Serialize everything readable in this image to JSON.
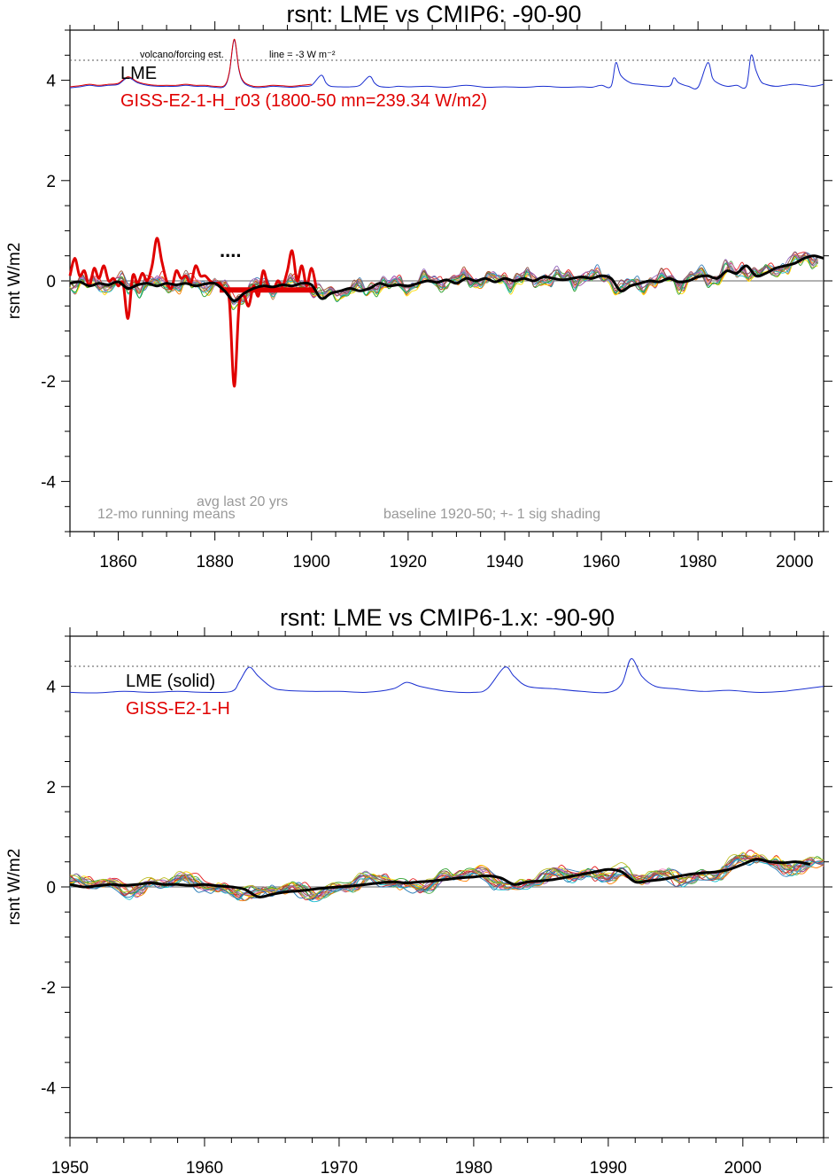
{
  "chart_data": [
    {
      "type": "line",
      "title": "rsnt: LME vs CMIP6: -90-90",
      "ylabel": "rsnt W/m2",
      "xlim": [
        1850,
        2006
      ],
      "ylim": [
        -5,
        5
      ],
      "x_ticks": [
        1860,
        1880,
        1900,
        1920,
        1940,
        1960,
        1980,
        2000
      ],
      "y_ticks": [
        -4,
        -2,
        0,
        2,
        4
      ],
      "grid": false,
      "reference_line": 4.4,
      "legend": {
        "lme": "LME",
        "giss": "GISS-E2-1-H_r03 (1800-50 mn=239.34 W/m2)",
        "placement": "top-left"
      },
      "annotations": {
        "volcano": "volcano/forcing est.",
        "line_scale": "line = -3 W m⁻²",
        "dots": "....",
        "avg_label": "avg last 20 yrs",
        "running": "12-mo running means",
        "baseline": "baseline 1920-50; +- 1 sig shading"
      },
      "volcano_series": {
        "color": "#1a2fd0",
        "x": [
          1850,
          1852,
          1854,
          1856,
          1858,
          1860,
          1862,
          1864,
          1866,
          1868,
          1870,
          1872,
          1874,
          1876,
          1878,
          1880,
          1882,
          1883,
          1884,
          1885,
          1886,
          1888,
          1890,
          1892,
          1894,
          1896,
          1898,
          1900,
          1902,
          1903,
          1904,
          1906,
          1908,
          1910,
          1912,
          1913,
          1914,
          1916,
          1918,
          1920,
          1924,
          1928,
          1932,
          1936,
          1940,
          1944,
          1948,
          1952,
          1956,
          1958,
          1960,
          1962,
          1963,
          1964,
          1966,
          1968,
          1970,
          1974,
          1975,
          1976,
          1978,
          1980,
          1982,
          1983,
          1984,
          1986,
          1988,
          1990,
          1991,
          1992,
          1993,
          1994,
          1996,
          1998,
          2000,
          2002,
          2004,
          2006
        ],
        "y": [
          3.85,
          3.87,
          3.9,
          3.88,
          3.9,
          3.92,
          4.05,
          3.95,
          3.9,
          3.88,
          3.88,
          3.88,
          3.9,
          3.88,
          3.88,
          3.86,
          3.88,
          4.15,
          4.8,
          4.2,
          3.95,
          3.86,
          3.86,
          3.88,
          3.87,
          3.86,
          3.88,
          3.9,
          4.1,
          3.95,
          3.88,
          3.87,
          3.87,
          3.9,
          4.08,
          3.95,
          3.88,
          3.86,
          3.88,
          3.87,
          3.88,
          3.86,
          3.9,
          3.86,
          3.87,
          3.86,
          3.88,
          3.86,
          3.87,
          3.86,
          3.9,
          3.88,
          4.35,
          4.1,
          3.95,
          3.92,
          3.9,
          3.88,
          4.05,
          3.95,
          3.88,
          3.86,
          4.35,
          4.05,
          3.95,
          3.88,
          3.9,
          3.88,
          4.5,
          4.2,
          3.98,
          3.92,
          3.88,
          3.9,
          3.92,
          3.9,
          3.88,
          3.92
        ]
      },
      "lme_series": {
        "color": "#000000",
        "x": [
          1850,
          1852,
          1854,
          1856,
          1858,
          1860,
          1862,
          1864,
          1866,
          1868,
          1870,
          1872,
          1874,
          1876,
          1878,
          1880,
          1882,
          1884,
          1886,
          1888,
          1890,
          1892,
          1894,
          1896,
          1898,
          1900,
          1902,
          1904,
          1906,
          1908,
          1910,
          1912,
          1914,
          1916,
          1918,
          1920,
          1922,
          1924,
          1926,
          1928,
          1930,
          1932,
          1934,
          1936,
          1938,
          1940,
          1942,
          1944,
          1946,
          1948,
          1950,
          1952,
          1954,
          1956,
          1958,
          1960,
          1962,
          1964,
          1966,
          1968,
          1970,
          1972,
          1974,
          1976,
          1978,
          1980,
          1982,
          1984,
          1986,
          1988,
          1990,
          1992,
          1994,
          1996,
          1998,
          2000,
          2002,
          2004,
          2006
        ],
        "y": [
          -0.05,
          -0.02,
          -0.1,
          -0.05,
          -0.08,
          -0.02,
          -0.15,
          -0.08,
          -0.05,
          -0.1,
          -0.05,
          -0.08,
          -0.05,
          -0.1,
          -0.06,
          -0.05,
          -0.2,
          -0.4,
          -0.25,
          -0.15,
          -0.1,
          -0.12,
          -0.08,
          -0.1,
          -0.05,
          -0.08,
          -0.35,
          -0.25,
          -0.2,
          -0.15,
          -0.2,
          -0.15,
          -0.05,
          -0.1,
          -0.08,
          -0.1,
          -0.05,
          0.0,
          -0.03,
          0.02,
          -0.05,
          0.05,
          0.0,
          0.05,
          -0.02,
          0.05,
          0.0,
          0.05,
          0.0,
          0.08,
          0.05,
          0.02,
          0.05,
          0.08,
          0.05,
          0.1,
          0.05,
          -0.2,
          -0.1,
          -0.05,
          0.0,
          -0.02,
          0.05,
          -0.02,
          0.0,
          0.08,
          0.1,
          0.05,
          0.2,
          0.15,
          0.3,
          0.1,
          0.15,
          0.25,
          0.3,
          0.35,
          0.45,
          0.5,
          0.45
        ]
      },
      "giss_series": {
        "color": "#e00000",
        "x": [
          1850,
          1851,
          1852,
          1853,
          1854,
          1855,
          1856,
          1857,
          1858,
          1859,
          1860,
          1861,
          1862,
          1863,
          1864,
          1865,
          1866,
          1867,
          1868,
          1869,
          1870,
          1871,
          1872,
          1873,
          1874,
          1875,
          1876,
          1877,
          1878,
          1879,
          1880,
          1881,
          1882,
          1883,
          1884,
          1885,
          1886,
          1887,
          1888,
          1889,
          1890,
          1891,
          1892,
          1893,
          1894,
          1895,
          1896,
          1897,
          1898,
          1899,
          1900,
          1901
        ],
        "y": [
          0.1,
          0.45,
          0.1,
          0.2,
          -0.1,
          0.25,
          0.05,
          0.3,
          0.0,
          0.05,
          -0.1,
          -0.05,
          -0.75,
          0.1,
          -0.05,
          0.15,
          0.0,
          0.3,
          0.85,
          0.4,
          0.0,
          -0.15,
          0.2,
          0.05,
          0.1,
          -0.05,
          0.3,
          0.1,
          0.1,
          0.0,
          -0.05,
          -0.05,
          -0.2,
          -0.4,
          -2.1,
          -0.5,
          -0.3,
          -0.5,
          -0.1,
          -0.3,
          0.2,
          -0.1,
          -0.2,
          0.0,
          -0.1,
          0.2,
          0.6,
          0.0,
          0.3,
          -0.1,
          0.25,
          -0.15
        ]
      },
      "giss_avg": {
        "color": "#e00000",
        "x": [
          1881,
          1901
        ],
        "y": -0.18
      },
      "ensemble": {
        "n": 13,
        "x_start": 1850,
        "x_end": 2006,
        "colors": [
          "#e41a1c",
          "#377eb8",
          "#4daf4a",
          "#984ea3",
          "#ff7f00",
          "#ffdd00",
          "#a65628",
          "#f781bf",
          "#999999",
          "#17becf",
          "#2ca02c",
          "#9467bd",
          "#8c564b"
        ]
      }
    },
    {
      "type": "line",
      "title": "rsnt: LME vs CMIP6-1.x: -90-90",
      "ylabel": "rsnt W/m2",
      "xlim": [
        1950,
        2006
      ],
      "ylim": [
        -5,
        5
      ],
      "x_ticks": [
        1950,
        1960,
        1970,
        1980,
        1990,
        2000
      ],
      "y_ticks": [
        -4,
        -2,
        0,
        2,
        4
      ],
      "grid": false,
      "reference_line": 4.4,
      "legend": {
        "lme": "LME (solid)",
        "giss": "GISS-E2-1-H",
        "placement": "top-left"
      },
      "volcano_series": {
        "color": "#1a2fd0",
        "x": [
          1950,
          1952,
          1954,
          1956,
          1958,
          1960,
          1962,
          1962.6,
          1963.3,
          1964,
          1965,
          1966,
          1968,
          1970,
          1972,
          1974,
          1975,
          1976,
          1978,
          1980,
          1981,
          1982.3,
          1983,
          1984,
          1986,
          1988,
          1990,
          1991,
          1991.7,
          1992.5,
          1993.5,
          1995,
          1997,
          1999,
          2001,
          2003,
          2006
        ],
        "y": [
          3.88,
          3.87,
          3.9,
          3.88,
          3.9,
          3.88,
          3.9,
          4.1,
          4.38,
          4.2,
          3.98,
          3.92,
          3.9,
          3.9,
          3.88,
          3.95,
          4.08,
          4.0,
          3.9,
          3.88,
          3.95,
          4.38,
          4.2,
          4.0,
          3.95,
          3.9,
          3.88,
          4.05,
          4.55,
          4.2,
          4.0,
          3.95,
          3.9,
          3.92,
          3.88,
          3.9,
          4.0
        ]
      },
      "lme_series": {
        "color": "#000000",
        "x": [
          1950,
          1951,
          1952,
          1953,
          1954,
          1955,
          1956,
          1957,
          1958,
          1959,
          1960,
          1961,
          1962,
          1963,
          1964,
          1965,
          1966,
          1967,
          1968,
          1969,
          1970,
          1971,
          1972,
          1973,
          1974,
          1975,
          1976,
          1977,
          1978,
          1979,
          1980,
          1981,
          1982,
          1983,
          1984,
          1985,
          1986,
          1987,
          1988,
          1989,
          1990,
          1991,
          1992,
          1993,
          1994,
          1995,
          1996,
          1997,
          1998,
          1999,
          2000,
          2001,
          2002,
          2003,
          2004,
          2005
        ],
        "y": [
          0.05,
          0.0,
          0.02,
          0.05,
          0.03,
          0.05,
          0.08,
          0.05,
          0.05,
          0.03,
          0.05,
          0.02,
          0.0,
          -0.05,
          -0.2,
          -0.15,
          -0.1,
          -0.08,
          -0.05,
          -0.02,
          0.0,
          0.02,
          0.05,
          0.08,
          0.1,
          0.08,
          0.1,
          0.12,
          0.15,
          0.18,
          0.2,
          0.22,
          0.18,
          0.05,
          0.1,
          0.12,
          0.15,
          0.2,
          0.25,
          0.3,
          0.35,
          0.3,
          0.1,
          0.12,
          0.15,
          0.2,
          0.25,
          0.28,
          0.3,
          0.35,
          0.45,
          0.55,
          0.5,
          0.48,
          0.5,
          0.45
        ]
      },
      "ensemble": {
        "n": 16,
        "x_start": 1950,
        "x_end": 2006,
        "colors": [
          "#e41a1c",
          "#377eb8",
          "#4daf4a",
          "#984ea3",
          "#ff7f00",
          "#ffdd00",
          "#a65628",
          "#f781bf",
          "#999999",
          "#17becf",
          "#2ca02c",
          "#9467bd",
          "#8c564b",
          "#d62728",
          "#1f77b4",
          "#bcbd22"
        ]
      }
    }
  ]
}
